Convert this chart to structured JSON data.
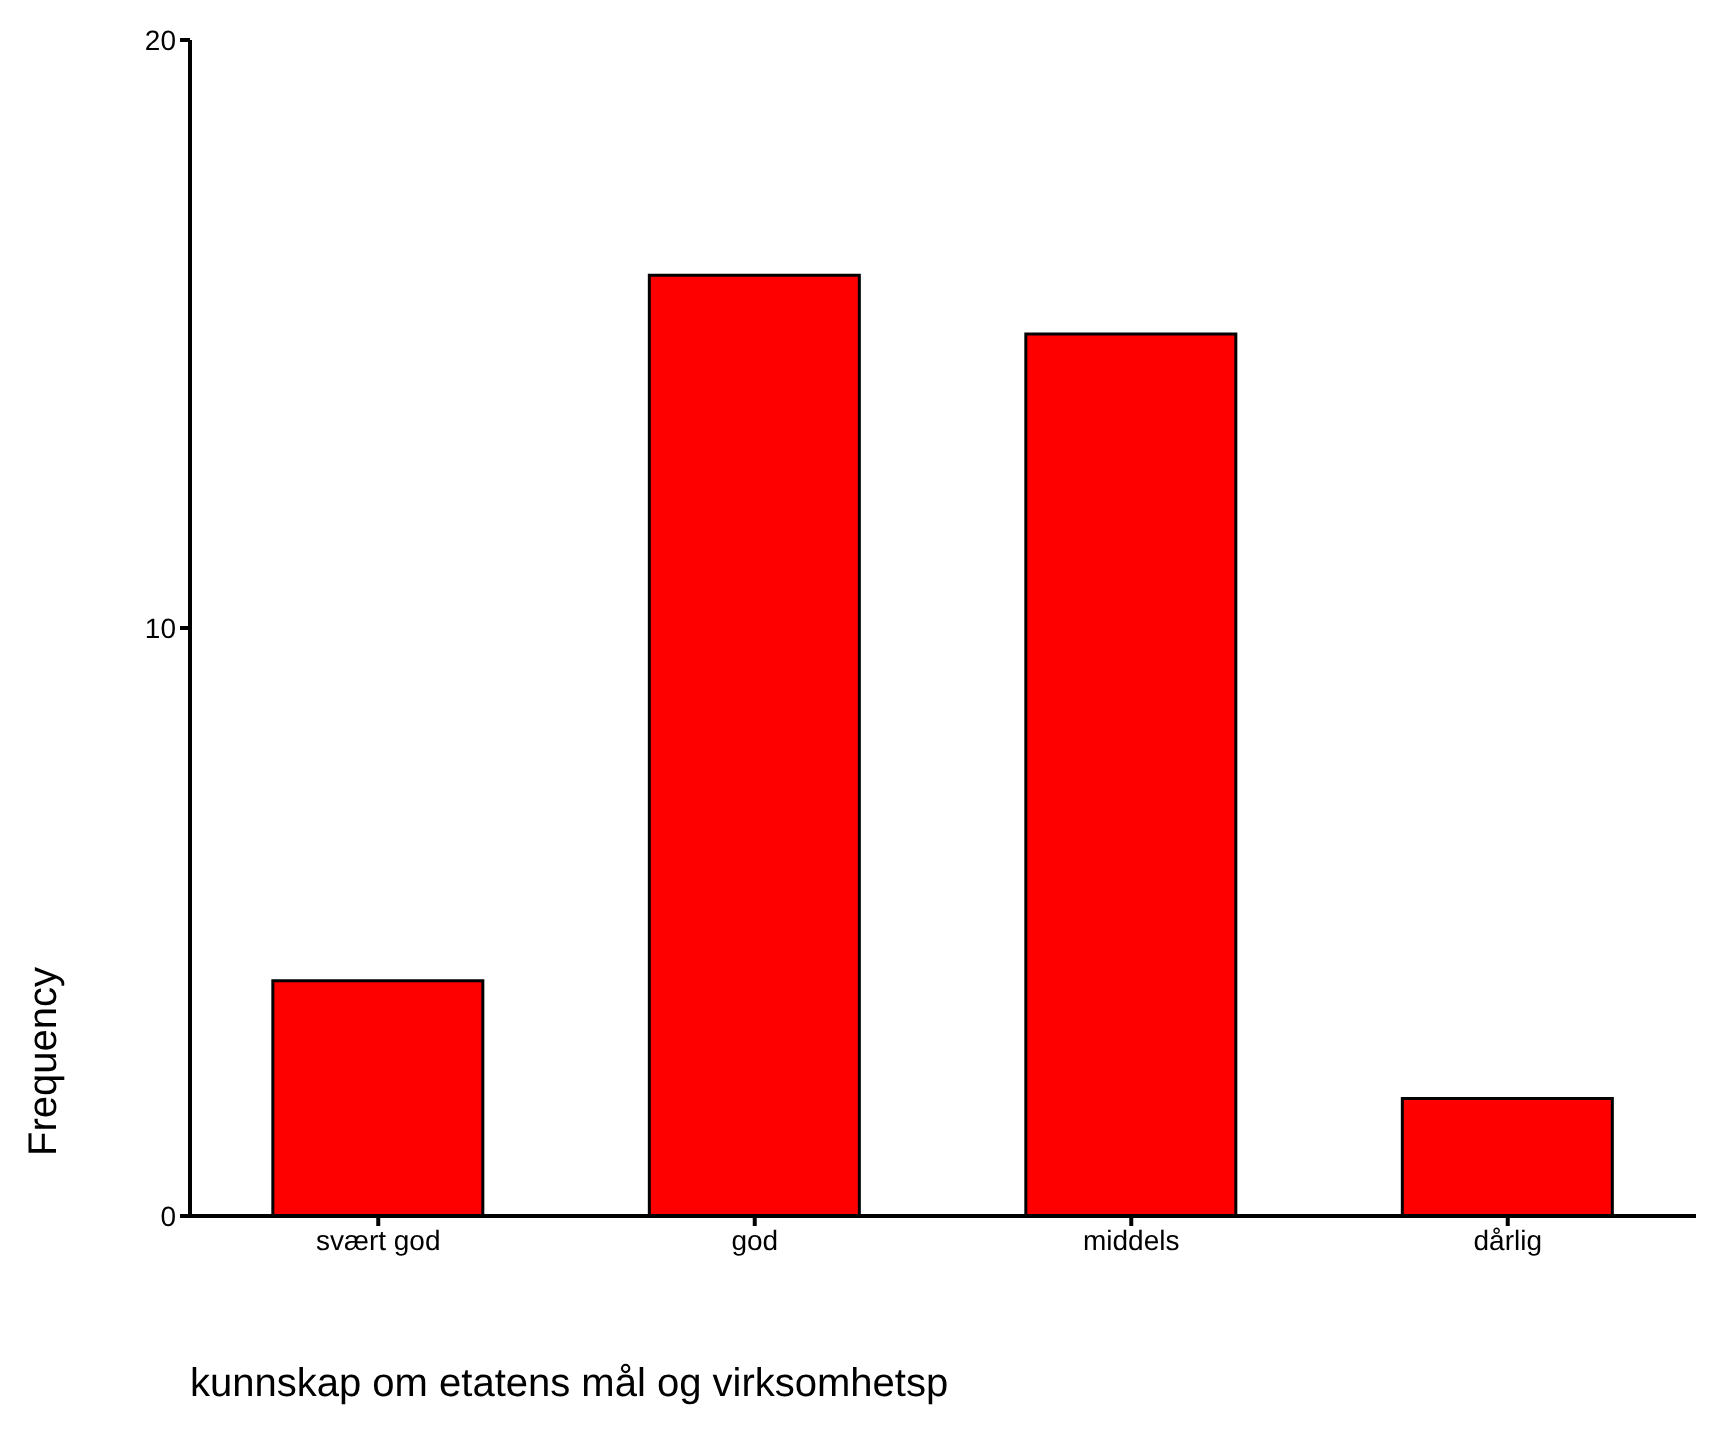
{
  "chart_data": {
    "type": "bar",
    "categories": [
      "svært god",
      "god",
      "middels",
      "dårlig"
    ],
    "values": [
      4,
      16,
      15,
      2
    ],
    "color": "#ff0000",
    "xlabel": "kunnskap om etatens mål og virksomhetsp",
    "ylabel": "Frequency",
    "ylim": [
      0,
      20
    ],
    "yticks": [
      0,
      10,
      20
    ],
    "grid": false
  }
}
